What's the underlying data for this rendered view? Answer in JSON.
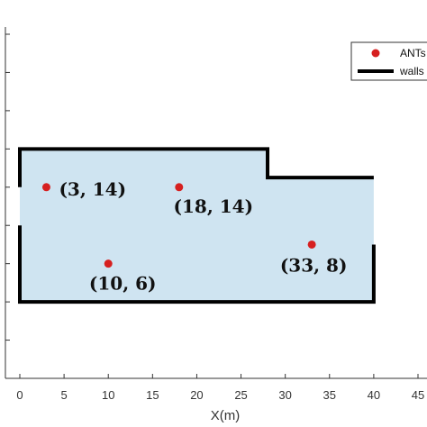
{
  "chart_data": {
    "type": "scatter",
    "xlabel": "X(m)",
    "ylabel": "",
    "xlim": [
      0,
      45
    ],
    "ylim": [
      -6,
      30
    ],
    "x_ticks": [
      0,
      5,
      10,
      15,
      20,
      25,
      30,
      35,
      40,
      45
    ],
    "y_ticks": [
      -6,
      -2,
      2,
      6,
      10,
      14,
      18,
      22,
      26,
      30
    ],
    "grid": false,
    "legend_position": "top-right",
    "series": [
      {
        "name": "ANTs",
        "marker": "circle",
        "color": "#d62020",
        "points": [
          {
            "x": 3,
            "y": 14,
            "label": "(3, 14)"
          },
          {
            "x": 18,
            "y": 14,
            "label": "(18, 14)"
          },
          {
            "x": 10,
            "y": 6,
            "label": "(10, 6)"
          },
          {
            "x": 33,
            "y": 8,
            "label": "(33, 8)"
          }
        ]
      }
    ],
    "walls_legend": "walls",
    "walls_color": "#000000",
    "room_fill": "#cfe4f1",
    "room_polygon": [
      [
        0,
        2
      ],
      [
        0,
        18
      ],
      [
        28,
        18
      ],
      [
        28,
        15
      ],
      [
        40,
        15
      ],
      [
        40,
        2
      ]
    ],
    "walls": [
      [
        [
          0,
          14
        ],
        [
          0,
          18
        ],
        [
          28,
          18
        ],
        [
          28,
          15
        ],
        [
          40,
          15
        ]
      ],
      [
        [
          0,
          10
        ],
        [
          0,
          2
        ],
        [
          40,
          2
        ],
        [
          40,
          8
        ]
      ]
    ]
  }
}
